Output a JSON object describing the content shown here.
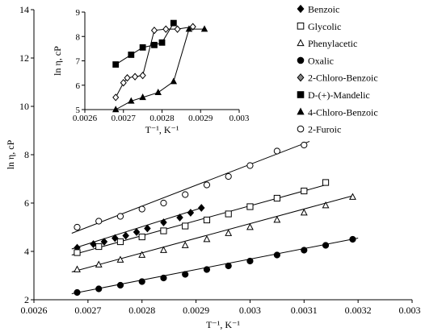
{
  "chart_data": {
    "type": "scatter",
    "main": {
      "xlabel": "T⁻¹, K⁻¹",
      "ylabel": "ln η, cP",
      "xlim": [
        0.0026,
        0.0033
      ],
      "ylim": [
        2,
        14
      ],
      "xticks": [
        0.0026,
        0.0027,
        0.0028,
        0.0029,
        0.003,
        0.0031,
        0.0032,
        0.0033
      ],
      "xtick_labels": [
        "0.0026",
        "0.0027",
        "0.0028",
        "0.0029",
        "0.003",
        "0.0031",
        "0.0032",
        "0.0033"
      ],
      "yticks": [
        2,
        4,
        6,
        8,
        10,
        12,
        14
      ],
      "ytick_labels": [
        "2",
        "4",
        "6",
        "8",
        "10",
        "12",
        "14"
      ],
      "grid": false,
      "series": [
        {
          "name": "Benzoic",
          "marker": "diamond",
          "fill": "#000000",
          "x": [
            0.00268,
            0.00271,
            0.00273,
            0.00275,
            0.00277,
            0.00279,
            0.00281,
            0.00284,
            0.00287,
            0.00289,
            0.00291
          ],
          "y": [
            4.15,
            4.3,
            4.4,
            4.55,
            4.65,
            4.8,
            4.95,
            5.2,
            5.4,
            5.6,
            5.8
          ]
        },
        {
          "name": "Glycolic",
          "marker": "square",
          "fill": "#ffffff",
          "x": [
            0.00268,
            0.00272,
            0.00276,
            0.0028,
            0.00284,
            0.00288,
            0.00292,
            0.00296,
            0.003,
            0.00305,
            0.0031,
            0.00314
          ],
          "y": [
            3.95,
            4.2,
            4.4,
            4.6,
            4.85,
            5.05,
            5.3,
            5.55,
            5.85,
            6.2,
            6.5,
            6.85
          ]
        },
        {
          "name": "Phenylacetic",
          "marker": "triangle",
          "fill": "#ffffff",
          "x": [
            0.00268,
            0.00272,
            0.00276,
            0.0028,
            0.00284,
            0.00288,
            0.00292,
            0.00296,
            0.003,
            0.00305,
            0.0031,
            0.00314,
            0.00319
          ],
          "y": [
            3.25,
            3.45,
            3.65,
            3.85,
            4.05,
            4.25,
            4.5,
            4.75,
            5.0,
            5.3,
            5.6,
            5.9,
            6.25
          ]
        },
        {
          "name": "Oxalic",
          "marker": "circle",
          "fill": "#000000",
          "x": [
            0.00268,
            0.00272,
            0.00276,
            0.0028,
            0.00284,
            0.00288,
            0.00292,
            0.00296,
            0.003,
            0.00305,
            0.0031,
            0.00314,
            0.00319
          ],
          "y": [
            2.3,
            2.45,
            2.6,
            2.75,
            2.9,
            3.05,
            3.25,
            3.4,
            3.6,
            3.85,
            4.05,
            4.25,
            4.5
          ]
        },
        {
          "name": "2-Furoic",
          "marker": "circle",
          "fill": "#ffffff",
          "x": [
            0.00268,
            0.00272,
            0.00276,
            0.0028,
            0.00284,
            0.00288,
            0.00292,
            0.00296,
            0.003,
            0.00305,
            0.0031
          ],
          "y": [
            5.0,
            5.25,
            5.45,
            5.75,
            6.0,
            6.35,
            6.75,
            7.1,
            7.55,
            8.15,
            8.4
          ]
        }
      ],
      "fits": [
        {
          "series": "Benzoic",
          "x": [
            0.00267,
            0.00291
          ],
          "y": [
            4.1,
            5.8
          ]
        },
        {
          "series": "Glycolic",
          "x": [
            0.00267,
            0.00314
          ],
          "y": [
            3.85,
            6.75
          ]
        },
        {
          "series": "Phenylacetic",
          "x": [
            0.00267,
            0.00319
          ],
          "y": [
            3.15,
            6.3
          ]
        },
        {
          "series": "Oxalic",
          "x": [
            0.00267,
            0.0032
          ],
          "y": [
            2.25,
            4.55
          ]
        },
        {
          "series": "2-Furoic",
          "x": [
            0.00267,
            0.00311
          ],
          "y": [
            4.75,
            8.55
          ]
        }
      ]
    },
    "inset": {
      "xlabel": "T⁻¹, K⁻¹",
      "ylabel": "ln η, cP",
      "xlim": [
        0.0026,
        0.003
      ],
      "ylim": [
        5,
        9
      ],
      "xticks": [
        0.0026,
        0.0027,
        0.0028,
        0.0029,
        0.003
      ],
      "xtick_labels": [
        "0.0026",
        "0.0027",
        "0.0028",
        "0.0029",
        "0.003"
      ],
      "yticks": [
        5,
        6,
        7,
        8,
        9
      ],
      "ytick_labels": [
        "5",
        "6",
        "7",
        "8",
        "9"
      ],
      "series": [
        {
          "name": "2-Chloro-Benzoic",
          "marker": "diamond",
          "fill": "#ffffff",
          "x": [
            0.00268,
            0.0027,
            0.00271,
            0.00273,
            0.00275,
            0.00278,
            0.00281,
            0.00284,
            0.00288
          ],
          "y": [
            5.5,
            6.1,
            6.3,
            6.35,
            6.4,
            8.25,
            8.3,
            8.3,
            8.4
          ]
        },
        {
          "name": "D-(+)-Mandelic",
          "marker": "square",
          "fill": "#000000",
          "x": [
            0.00268,
            0.00272,
            0.00275,
            0.00278,
            0.0028,
            0.00283
          ],
          "y": [
            6.85,
            7.25,
            7.55,
            7.65,
            7.75,
            8.55
          ]
        },
        {
          "name": "4-Chloro-Benzoic",
          "marker": "triangle",
          "fill": "#000000",
          "x": [
            0.00268,
            0.00272,
            0.00275,
            0.00279,
            0.00283,
            0.00287,
            0.00291
          ],
          "y": [
            5.0,
            5.35,
            5.5,
            5.7,
            6.15,
            8.3,
            8.3
          ]
        }
      ]
    },
    "legend": {
      "placement": "right",
      "entries": [
        {
          "label": "Benzoic",
          "marker": "diamond",
          "fill": "#000000"
        },
        {
          "label": "Glycolic",
          "marker": "square",
          "fill": "#ffffff"
        },
        {
          "label": "Phenylacetic",
          "marker": "triangle",
          "fill": "#ffffff"
        },
        {
          "label": "Oxalic",
          "marker": "circle",
          "fill": "#000000"
        },
        {
          "label": "2-Chloro-Benzoic",
          "marker": "diamond",
          "fill": "#888888"
        },
        {
          "label": "D-(+)-Mandelic",
          "marker": "square",
          "fill": "#000000"
        },
        {
          "label": "4-Chloro-Benzoic",
          "marker": "triangle",
          "fill": "#000000"
        },
        {
          "label": "2-Furoic",
          "marker": "circle",
          "fill": "#ffffff"
        }
      ]
    }
  }
}
